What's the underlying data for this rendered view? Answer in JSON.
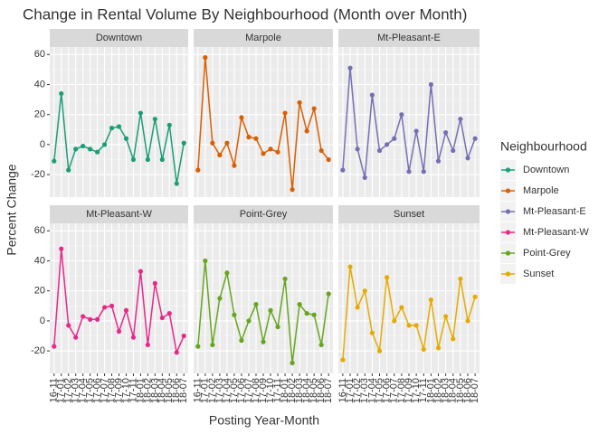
{
  "chart_data": {
    "type": "line",
    "title": "Change in Rental Volume By Neighbourhood (Month over Month)",
    "x_label": "Posting Year-Month",
    "y_label": "Percent Change",
    "legend_title": "Neighbourhood",
    "categories": [
      "16-11",
      "17-01",
      "17-02",
      "17-03",
      "17-04",
      "17-05",
      "17-06",
      "17-07",
      "17-08",
      "17-09",
      "17-10",
      "17-11",
      "18-01",
      "18-02",
      "18-03",
      "18-04",
      "18-05",
      "18-06",
      "18-07"
    ],
    "ylim": [
      -35,
      65
    ],
    "yticks": [
      -20,
      0,
      20,
      40,
      60
    ],
    "grid": true,
    "series": [
      {
        "name": "Downtown",
        "color": "#1b9e77",
        "values": [
          -11,
          34,
          -17,
          -3,
          -1,
          -3,
          -5,
          0,
          11,
          12,
          4,
          -10,
          21,
          -10,
          17,
          -10,
          13,
          -26,
          1
        ]
      },
      {
        "name": "Marpole",
        "color": "#d95f02",
        "values": [
          -17,
          58,
          1,
          -7,
          1,
          -14,
          18,
          5,
          4,
          -6,
          -3,
          -5,
          21,
          -30,
          28,
          9,
          24,
          -4,
          -10
        ]
      },
      {
        "name": "Mt-Pleasant-E",
        "color": "#7570b3",
        "values": [
          -17,
          51,
          -3,
          -22,
          33,
          -4,
          0,
          4,
          20,
          -18,
          9,
          -18,
          40,
          -11,
          8,
          -4,
          17,
          -9,
          4
        ]
      },
      {
        "name": "Mt-Pleasant-W",
        "color": "#e7298a",
        "values": [
          -17,
          48,
          -3,
          -11,
          3,
          1,
          1,
          9,
          10,
          -7,
          7,
          -11,
          33,
          -16,
          25,
          2,
          5,
          -21,
          -10
        ]
      },
      {
        "name": "Point-Grey",
        "color": "#66a61e",
        "values": [
          -17,
          40,
          -16,
          15,
          32,
          4,
          -13,
          0,
          11,
          -14,
          7,
          -4,
          28,
          -28,
          11,
          5,
          4,
          -16,
          18
        ]
      },
      {
        "name": "Sunset",
        "color": "#e6ab02",
        "values": [
          -26,
          36,
          9,
          20,
          -8,
          -20,
          29,
          0,
          9,
          -3,
          -3,
          -19,
          14,
          -18,
          3,
          -12,
          28,
          0,
          16
        ]
      }
    ]
  }
}
